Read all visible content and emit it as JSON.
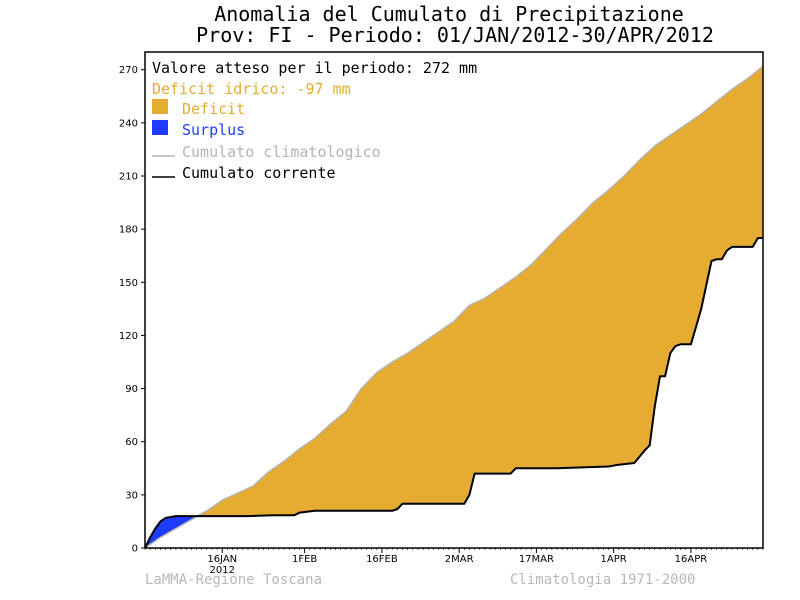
{
  "chart_data": {
    "type": "area",
    "title": "Anomalia del Cumulato di Precipitazione",
    "subtitle": "Prov: FI - Periodo: 01/JAN/2012-30/APR/2012",
    "xlabel": "",
    "ylabel": "",
    "ylim": [
      0,
      280
    ],
    "yticks": [
      0,
      30,
      60,
      90,
      120,
      150,
      180,
      210,
      240,
      270
    ],
    "xlim": [
      0,
      120
    ],
    "xticks": [
      {
        "day": 15,
        "label": "16JAN",
        "sublabel": "2012"
      },
      {
        "day": 31,
        "label": "1FEB"
      },
      {
        "day": 46,
        "label": "16FEB"
      },
      {
        "day": 61,
        "label": "2MAR"
      },
      {
        "day": 76,
        "label": "17MAR"
      },
      {
        "day": 91,
        "label": "1APR"
      },
      {
        "day": 106,
        "label": "16APR"
      }
    ],
    "grid": false,
    "legend_position": "top-left",
    "info": {
      "expected": "Valore atteso per il periodo: 272 mm",
      "deficit": "Deficit idrico: -97 mm"
    },
    "series": [
      {
        "name": "Cumulato climatologico",
        "color": "#b4b4b4",
        "x": [
          0,
          3,
          6,
          9,
          12,
          15,
          18,
          21,
          24,
          27,
          30,
          33,
          36,
          39,
          42,
          45,
          48,
          51,
          54,
          57,
          60,
          63,
          66,
          69,
          72,
          75,
          78,
          81,
          84,
          87,
          90,
          93,
          96,
          99,
          102,
          105,
          108,
          111,
          114,
          117,
          120
        ],
        "values": [
          0,
          6,
          11,
          16,
          21,
          27,
          31,
          35,
          43,
          49,
          56,
          62,
          70,
          77,
          90,
          99,
          105,
          110,
          116,
          122,
          128,
          137,
          141,
          147,
          153,
          160,
          169,
          178,
          186,
          195,
          202,
          210,
          219,
          227,
          233,
          239,
          245,
          252,
          259,
          265,
          272
        ]
      },
      {
        "name": "Cumulato corrente",
        "color": "#000000",
        "x": [
          0,
          1,
          2,
          3,
          4,
          5,
          6,
          10,
          15,
          20,
          25,
          29,
          30,
          33,
          40,
          48,
          49,
          50,
          55,
          62,
          63,
          64,
          70,
          71,
          72,
          80,
          90,
          92,
          95,
          97,
          98,
          99,
          100,
          101,
          102,
          103,
          104,
          106,
          107,
          108,
          110,
          111,
          112,
          113,
          114,
          115,
          116,
          118,
          119,
          120
        ],
        "values": [
          0,
          6,
          11,
          15,
          17,
          17.5,
          18,
          18,
          18,
          18,
          18.5,
          18.5,
          20,
          21,
          21,
          21,
          22,
          25,
          25,
          25,
          30,
          42,
          42,
          42,
          45,
          45,
          46,
          47,
          48,
          55,
          58,
          80,
          97,
          97,
          110,
          114,
          115,
          115,
          125,
          135,
          162,
          163,
          163,
          168,
          170,
          170,
          170,
          170,
          175,
          175
        ]
      }
    ],
    "fills": [
      {
        "name": "Deficit",
        "color": "#e5ac31"
      },
      {
        "name": "Surplus",
        "color": "#1e3cff"
      }
    ]
  },
  "footer": {
    "left": "LaMMA-Regione Toscana",
    "right": "Climatologia 1971-2000"
  }
}
